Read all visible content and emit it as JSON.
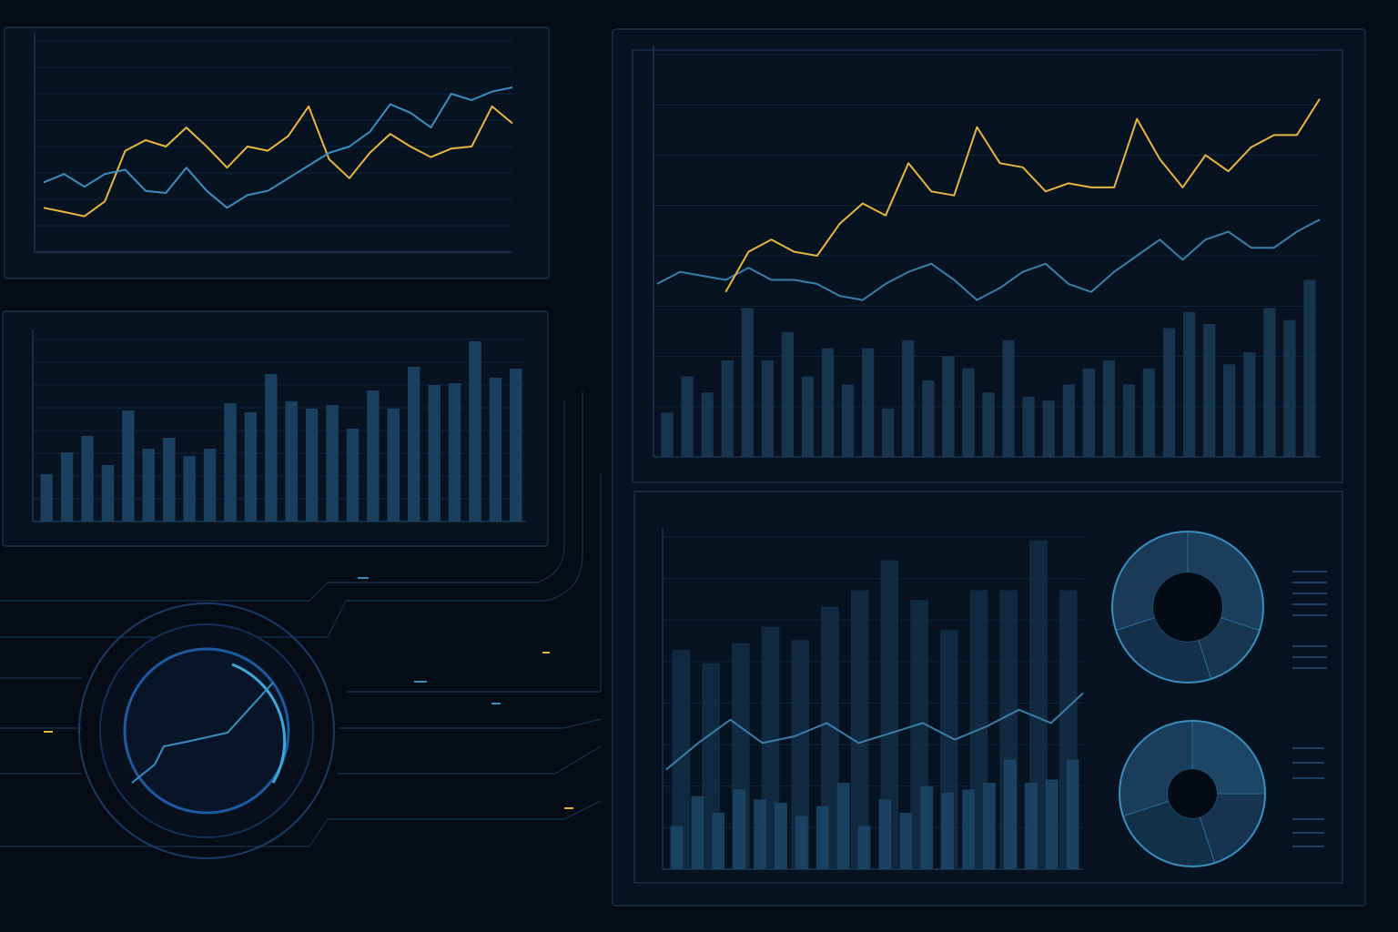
{
  "chart_data": [
    {
      "type": "line",
      "ylim": [
        0,
        100
      ],
      "grid": true,
      "series": [
        {
          "color": "#e8b640",
          "values": [
            21,
            19,
            17,
            24,
            48,
            53,
            50,
            59,
            50,
            40,
            50,
            48,
            55,
            69,
            44,
            35,
            47,
            56,
            50,
            45,
            49,
            50,
            69,
            61
          ]
        },
        {
          "color": "#3a8fc0",
          "values": [
            33,
            37,
            31,
            37,
            39,
            29,
            28,
            40,
            29,
            21,
            27,
            29,
            35,
            41,
            47,
            50,
            57,
            70,
            66,
            59,
            75,
            72,
            76,
            78
          ]
        }
      ]
    },
    {
      "type": "bar",
      "ylim": [
        0,
        100
      ],
      "grid": true,
      "series": [
        {
          "color": "#1d4566",
          "values": [
            26,
            38,
            47,
            31,
            61,
            40,
            46,
            36,
            40,
            65,
            60,
            81,
            66,
            62,
            64,
            51,
            72,
            62,
            85,
            75,
            76,
            99,
            79,
            84
          ]
        }
      ]
    },
    {
      "type": "combo",
      "ylim": [
        0,
        100
      ],
      "grid": true,
      "series": [
        {
          "kind": "bar",
          "color": "#1b3a55",
          "values": [
            11,
            20,
            16,
            24,
            37,
            24,
            31,
            20,
            27,
            18,
            27,
            12,
            29,
            19,
            25,
            22,
            16,
            29,
            15,
            14,
            18,
            22,
            24,
            18,
            22,
            32,
            36,
            33,
            23,
            26,
            37,
            34,
            44
          ]
        },
        {
          "kind": "line",
          "color": "#3a7fa8",
          "values": [
            43,
            46,
            45,
            44,
            47,
            44,
            44,
            43,
            40,
            39,
            43,
            46,
            48,
            44,
            39,
            42,
            46,
            48,
            43,
            41,
            46,
            50,
            54,
            49,
            54,
            56,
            52,
            52,
            56,
            59
          ]
        },
        {
          "kind": "line",
          "color": "#e8b640",
          "values": [
            null,
            null,
            null,
            41,
            51,
            54,
            51,
            50,
            58,
            63,
            60,
            73,
            66,
            65,
            82,
            73,
            72,
            66,
            68,
            67,
            67,
            84,
            74,
            67,
            75,
            71,
            77,
            80,
            80,
            89
          ]
        }
      ]
    },
    {
      "type": "combo",
      "ylim": [
        0,
        100
      ],
      "grid": true,
      "series": [
        {
          "kind": "bar",
          "color": "#142d45",
          "values": [
            66,
            62,
            68,
            73,
            69,
            79,
            84,
            93,
            81,
            72,
            84,
            84,
            99,
            84
          ]
        },
        {
          "kind": "bar",
          "color": "#1d4566",
          "values": [
            13,
            22,
            17,
            24,
            21,
            20,
            16,
            19,
            26,
            13,
            21,
            17,
            25,
            23,
            24,
            26,
            33,
            26,
            27,
            33
          ]
        },
        {
          "kind": "line",
          "color": "#3a7fa8",
          "values": [
            30,
            38,
            45,
            38,
            40,
            44,
            38,
            41,
            44,
            39,
            43,
            48,
            44,
            53
          ]
        }
      ]
    },
    {
      "type": "pie",
      "values": [
        30,
        15,
        25,
        30
      ],
      "colors": [
        "#1d3f5e",
        "#183650",
        "#14304a",
        "#1a3a58"
      ]
    },
    {
      "type": "pie",
      "values": [
        25,
        20,
        25,
        30
      ],
      "colors": [
        "#1d4566",
        "#163350",
        "#123048",
        "#1a3d5c"
      ]
    }
  ]
}
